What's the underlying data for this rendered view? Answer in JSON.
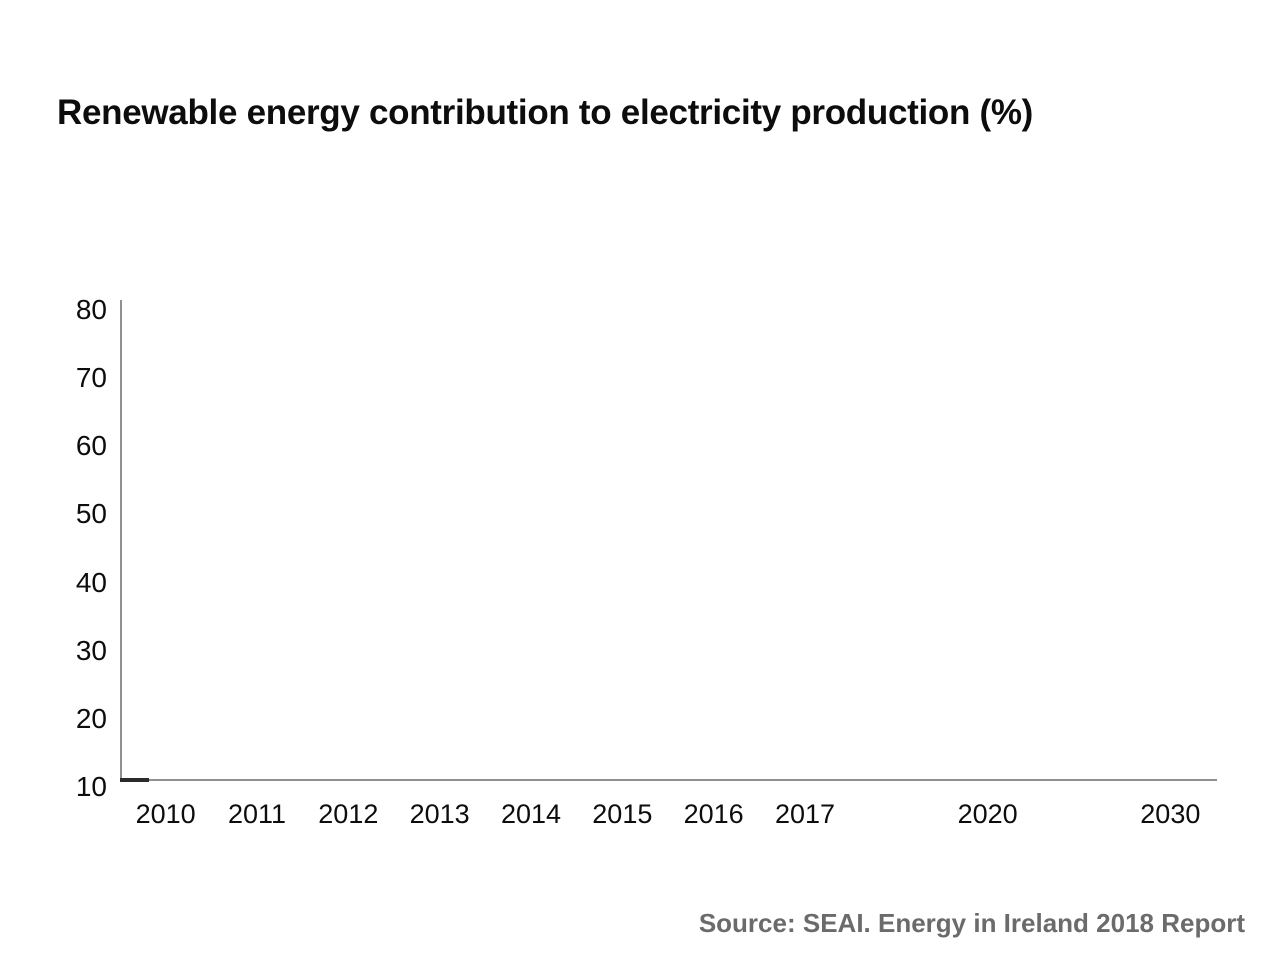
{
  "header": {
    "title": "Renewable energy contribution to electricity production (%)"
  },
  "footer": {
    "source": "Source: SEAI. Energy in Ireland 2018 Report"
  },
  "chart_data": {
    "type": "line",
    "title": "Renewable energy contribution to electricity production (%)",
    "xlabel": "",
    "ylabel": "",
    "x_tick_labels": [
      "2010",
      "2011",
      "2012",
      "2013",
      "2014",
      "2015",
      "2016",
      "2017",
      "2020",
      "2030"
    ],
    "x_tick_slots": [
      0,
      1,
      2,
      3,
      4,
      5,
      6,
      7,
      9,
      11
    ],
    "x_slot_count": 12,
    "y_tick_labels": [
      "80",
      "70",
      "60",
      "50",
      "40",
      "30",
      "20",
      "10"
    ],
    "ylim": [
      10,
      80
    ],
    "grid": false,
    "legend_position": "none",
    "series": [
      {
        "name": "renewable-electricity-share",
        "color": "#2b2b2b",
        "visible_points": [
          {
            "x": "2010 (axis origin)",
            "y": 10
          }
        ],
        "note": "animated line just beginning: only a short dark stub is drawn at the axis origin; rest of plot area is empty"
      }
    ],
    "colors": {
      "axis": "#909090",
      "tick_label": "#0d0d0d",
      "title": "#0d0d0d",
      "source": "#6b6b6b",
      "background": "#ffffff"
    },
    "source": "Source: SEAI. Energy in Ireland 2018 Report"
  }
}
